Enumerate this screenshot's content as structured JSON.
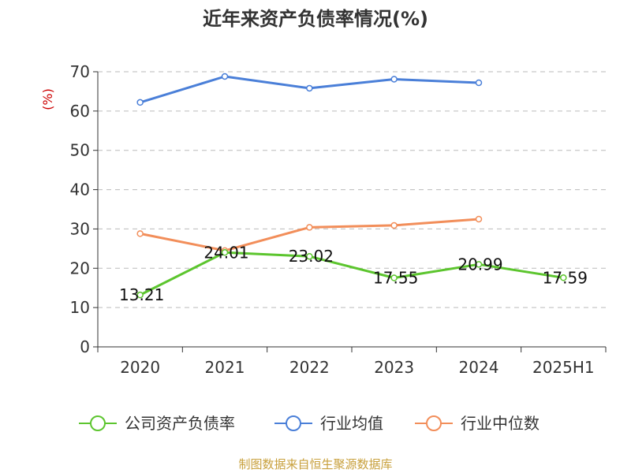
{
  "chart_data": {
    "type": "line",
    "title": "近年来资产负债率情况(%)",
    "ylabel": "(%)",
    "xlabel": "",
    "categories": [
      "2020",
      "2021",
      "2022",
      "2023",
      "2024",
      "2025H1"
    ],
    "ylim": [
      0,
      70
    ],
    "yticks": [
      "0",
      "10",
      "20",
      "30",
      "40",
      "50",
      "60",
      "70"
    ],
    "grid": true,
    "legend_position": "bottom",
    "series": [
      {
        "name": "公司资产负债率",
        "color": "#5cc52e",
        "values": [
          13.21,
          24.01,
          23.02,
          17.55,
          20.99,
          17.59
        ],
        "labels": [
          "13.21",
          "24.01",
          "23.02",
          "17.55",
          "20.99",
          "17.59"
        ]
      },
      {
        "name": "行业均值",
        "color": "#4a7fd8",
        "values": [
          62.2,
          68.8,
          65.8,
          68.1,
          67.2,
          null
        ]
      },
      {
        "name": "行业中位数",
        "color": "#f28e5a",
        "values": [
          28.8,
          24.5,
          30.4,
          30.9,
          32.5,
          null
        ]
      }
    ]
  },
  "source_note": "制图数据来自恒生聚源数据库"
}
